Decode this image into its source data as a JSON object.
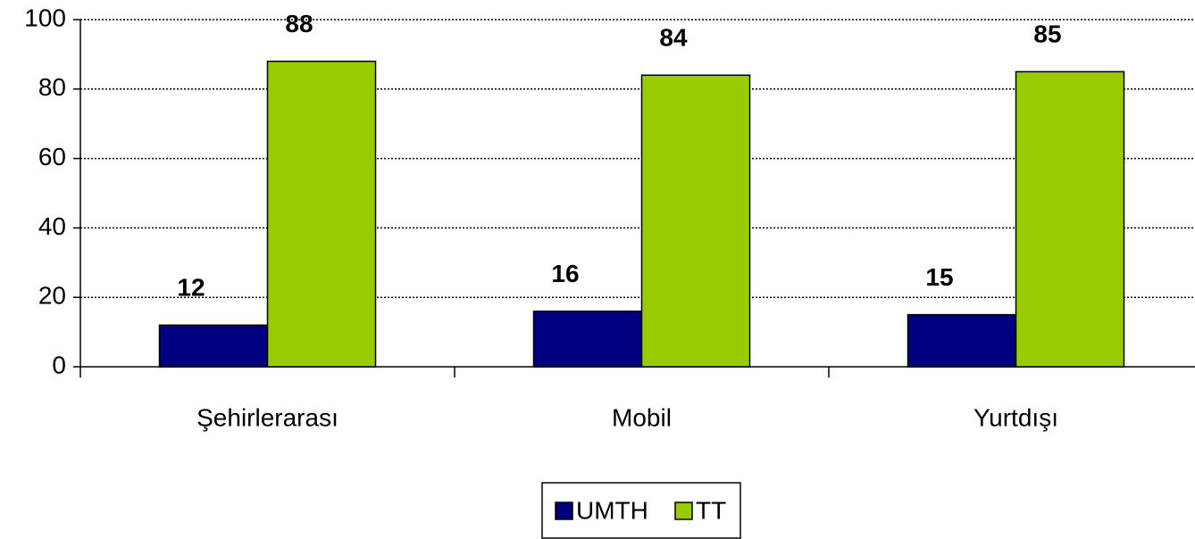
{
  "chart_data": {
    "type": "bar",
    "categories": [
      "Şehirlerarası",
      "Mobil",
      "Yurtdışı"
    ],
    "series": [
      {
        "name": "UMTH",
        "color": "#000080",
        "values": [
          12,
          16,
          15
        ]
      },
      {
        "name": "TT",
        "color": "#99cc00",
        "values": [
          88,
          84,
          85
        ]
      }
    ],
    "ylim": [
      0,
      100
    ],
    "yticks": [
      0,
      20,
      40,
      60,
      80,
      100
    ],
    "grid": true,
    "legend": "bottom"
  }
}
